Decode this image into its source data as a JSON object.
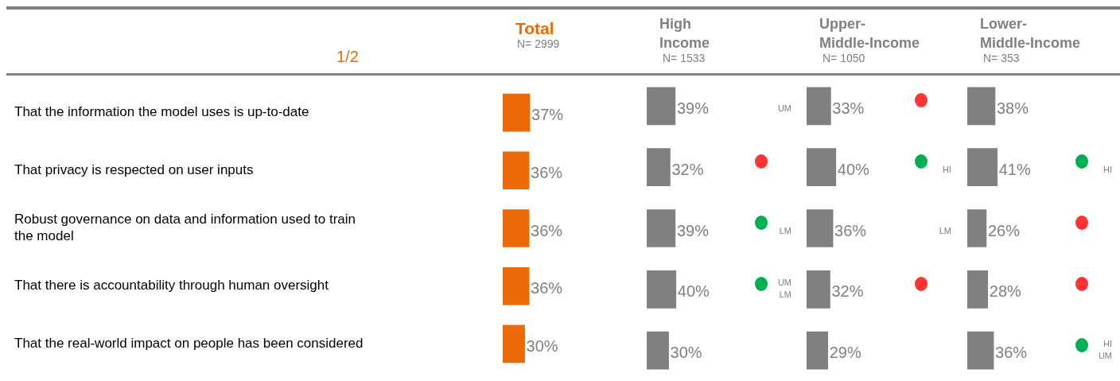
{
  "chart_data": [
    {
      "type": "bar",
      "orientation": "horizontal",
      "title": "Total",
      "subtitle": "N= 2999",
      "tick_labels": "y",
      "categories": [
        "That the information the model uses is up-to-date",
        "That privacy is respected on user inputs",
        "Robust governance on data and information used to train the model",
        "That there is accountability through human oversight",
        "That the real-world impact on people has been considered"
      ],
      "series": [
        {
          "color": "#ec6a06",
          "values": [
            37,
            36,
            36,
            36,
            30
          ],
          "value_labels": [
            "37%",
            "36%",
            "36%",
            "36%",
            "30%"
          ]
        }
      ],
      "annotations": [
        "1/2"
      ]
    },
    {
      "type": "bar",
      "orientation": "horizontal",
      "title": "High Income",
      "subtitle": "N= 1533",
      "tick_labels": false,
      "categories": [
        null,
        null,
        null,
        null,
        null
      ],
      "series": [
        {
          "color": "#808080",
          "values": [
            39,
            32,
            39,
            40,
            30
          ],
          "value_labels": [
            "39%",
            "32%",
            "39%",
            "40%",
            "30%"
          ]
        }
      ],
      "annotations": [
        "UM",
        "LM",
        "UM",
        "LM"
      ]
    },
    {
      "type": "bar",
      "orientation": "horizontal",
      "title": "Upper-Middle-Income",
      "subtitle": "N= 1050",
      "tick_labels": false,
      "categories": [
        null,
        null,
        null,
        null,
        null
      ],
      "series": [
        {
          "color": "#808080",
          "values": [
            33,
            40,
            36,
            32,
            29
          ],
          "value_labels": [
            "33%",
            "40%",
            "36%",
            "32%",
            "29%"
          ]
        }
      ],
      "annotations": [
        "HI",
        "LM"
      ]
    },
    {
      "type": "bar",
      "orientation": "horizontal",
      "title": "Lower-Middle-Income",
      "subtitle": "N= 353",
      "tick_labels": false,
      "categories": [
        null,
        null,
        null,
        null,
        null
      ],
      "series": [
        {
          "color": "#808080",
          "values": [
            38,
            41,
            26,
            28,
            36
          ],
          "value_labels": [
            "38%",
            "41%",
            "26%",
            "28%",
            "36%"
          ]
        }
      ],
      "annotations": [
        "HI",
        "HI",
        "UM"
      ]
    }
  ]
}
